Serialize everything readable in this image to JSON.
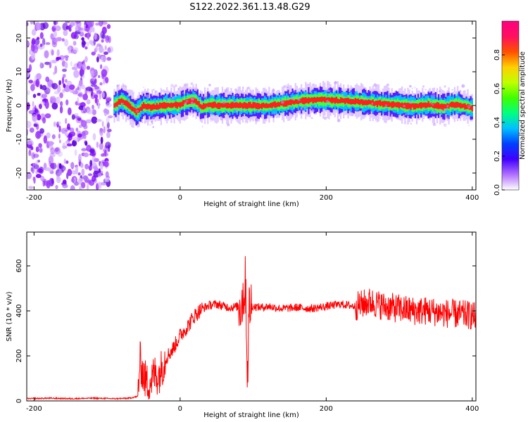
{
  "title": "S122.2022.361.13.48.G29",
  "chart_data": [
    {
      "type": "heatmap",
      "xlabel": "Height of straight line (km)",
      "ylabel": "Frequency (Hz)",
      "xlim": [
        -210,
        405
      ],
      "ylim": [
        -25,
        25
      ],
      "x_ticks": [
        -200,
        0,
        200,
        400
      ],
      "y_ticks": [
        -20,
        -10,
        0,
        10,
        20
      ],
      "colorbar": {
        "label": "Normalized spectral amplitude",
        "ticks": [
          "0.0",
          "0.2",
          "0.4",
          "0.6",
          "0.8"
        ],
        "tick_values": [
          0,
          0.2,
          0.4,
          0.6,
          0.8
        ],
        "range": [
          0,
          1
        ],
        "colors": [
          "#ffffff",
          "#b070ff",
          "#4000ff",
          "#0040ff",
          "#00c0ff",
          "#00ff80",
          "#40ff00",
          "#c0ff00",
          "#ffd000",
          "#ff5000",
          "#ff1060",
          "#ff0080"
        ]
      },
      "noise_region_x": [
        -210,
        -95
      ],
      "ridge": {
        "x": [
          -90,
          -80,
          -70,
          -60,
          -50,
          -40,
          -20,
          0,
          10,
          20,
          30,
          40,
          60,
          80,
          100,
          120,
          140,
          160,
          180,
          200,
          220,
          240,
          260,
          280,
          300,
          320,
          340,
          360,
          380,
          400
        ],
        "freq": [
          0,
          1.5,
          0,
          -2,
          0,
          -0.5,
          0,
          0.3,
          1.2,
          1.5,
          -0.5,
          0.2,
          0,
          0,
          0,
          0,
          0.5,
          1.2,
          1.6,
          1.7,
          1.4,
          1.2,
          0.8,
          0.5,
          0.2,
          -0.2,
          0.3,
          -0.3,
          0.4,
          -0.8
        ]
      }
    },
    {
      "type": "line",
      "xlabel": "Height of straight line (km)",
      "ylabel": "SNR (10 * v/v)",
      "xlim": [
        -210,
        405
      ],
      "ylim": [
        0,
        750
      ],
      "x_ticks": [
        -200,
        0,
        200,
        400
      ],
      "y_ticks": [
        0,
        200,
        400,
        600
      ],
      "color": "#ff0000",
      "series": [
        {
          "x": [
            -210,
            -180,
            -150,
            -120,
            -90,
            -70,
            -58,
            -55,
            -50,
            -45,
            -40,
            -35,
            -30,
            -25,
            -20,
            -15,
            -10,
            -5,
            0,
            10,
            20,
            30,
            40,
            50,
            60,
            70,
            80,
            85,
            90,
            92,
            95,
            100,
            110,
            120,
            140,
            160,
            180,
            200,
            220,
            240,
            260,
            280,
            300,
            320,
            340,
            360,
            380,
            400,
            405
          ],
          "values": [
            10,
            12,
            10,
            12,
            10,
            12,
            20,
            180,
            110,
            80,
            90,
            120,
            110,
            150,
            190,
            210,
            230,
            260,
            290,
            330,
            380,
            410,
            425,
            430,
            420,
            415,
            420,
            450,
            520,
            110,
            430,
            420,
            415,
            420,
            410,
            415,
            410,
            420,
            430,
            420,
            440,
            420,
            410,
            400,
            400,
            390,
            385,
            380,
            370
          ]
        }
      ]
    }
  ]
}
